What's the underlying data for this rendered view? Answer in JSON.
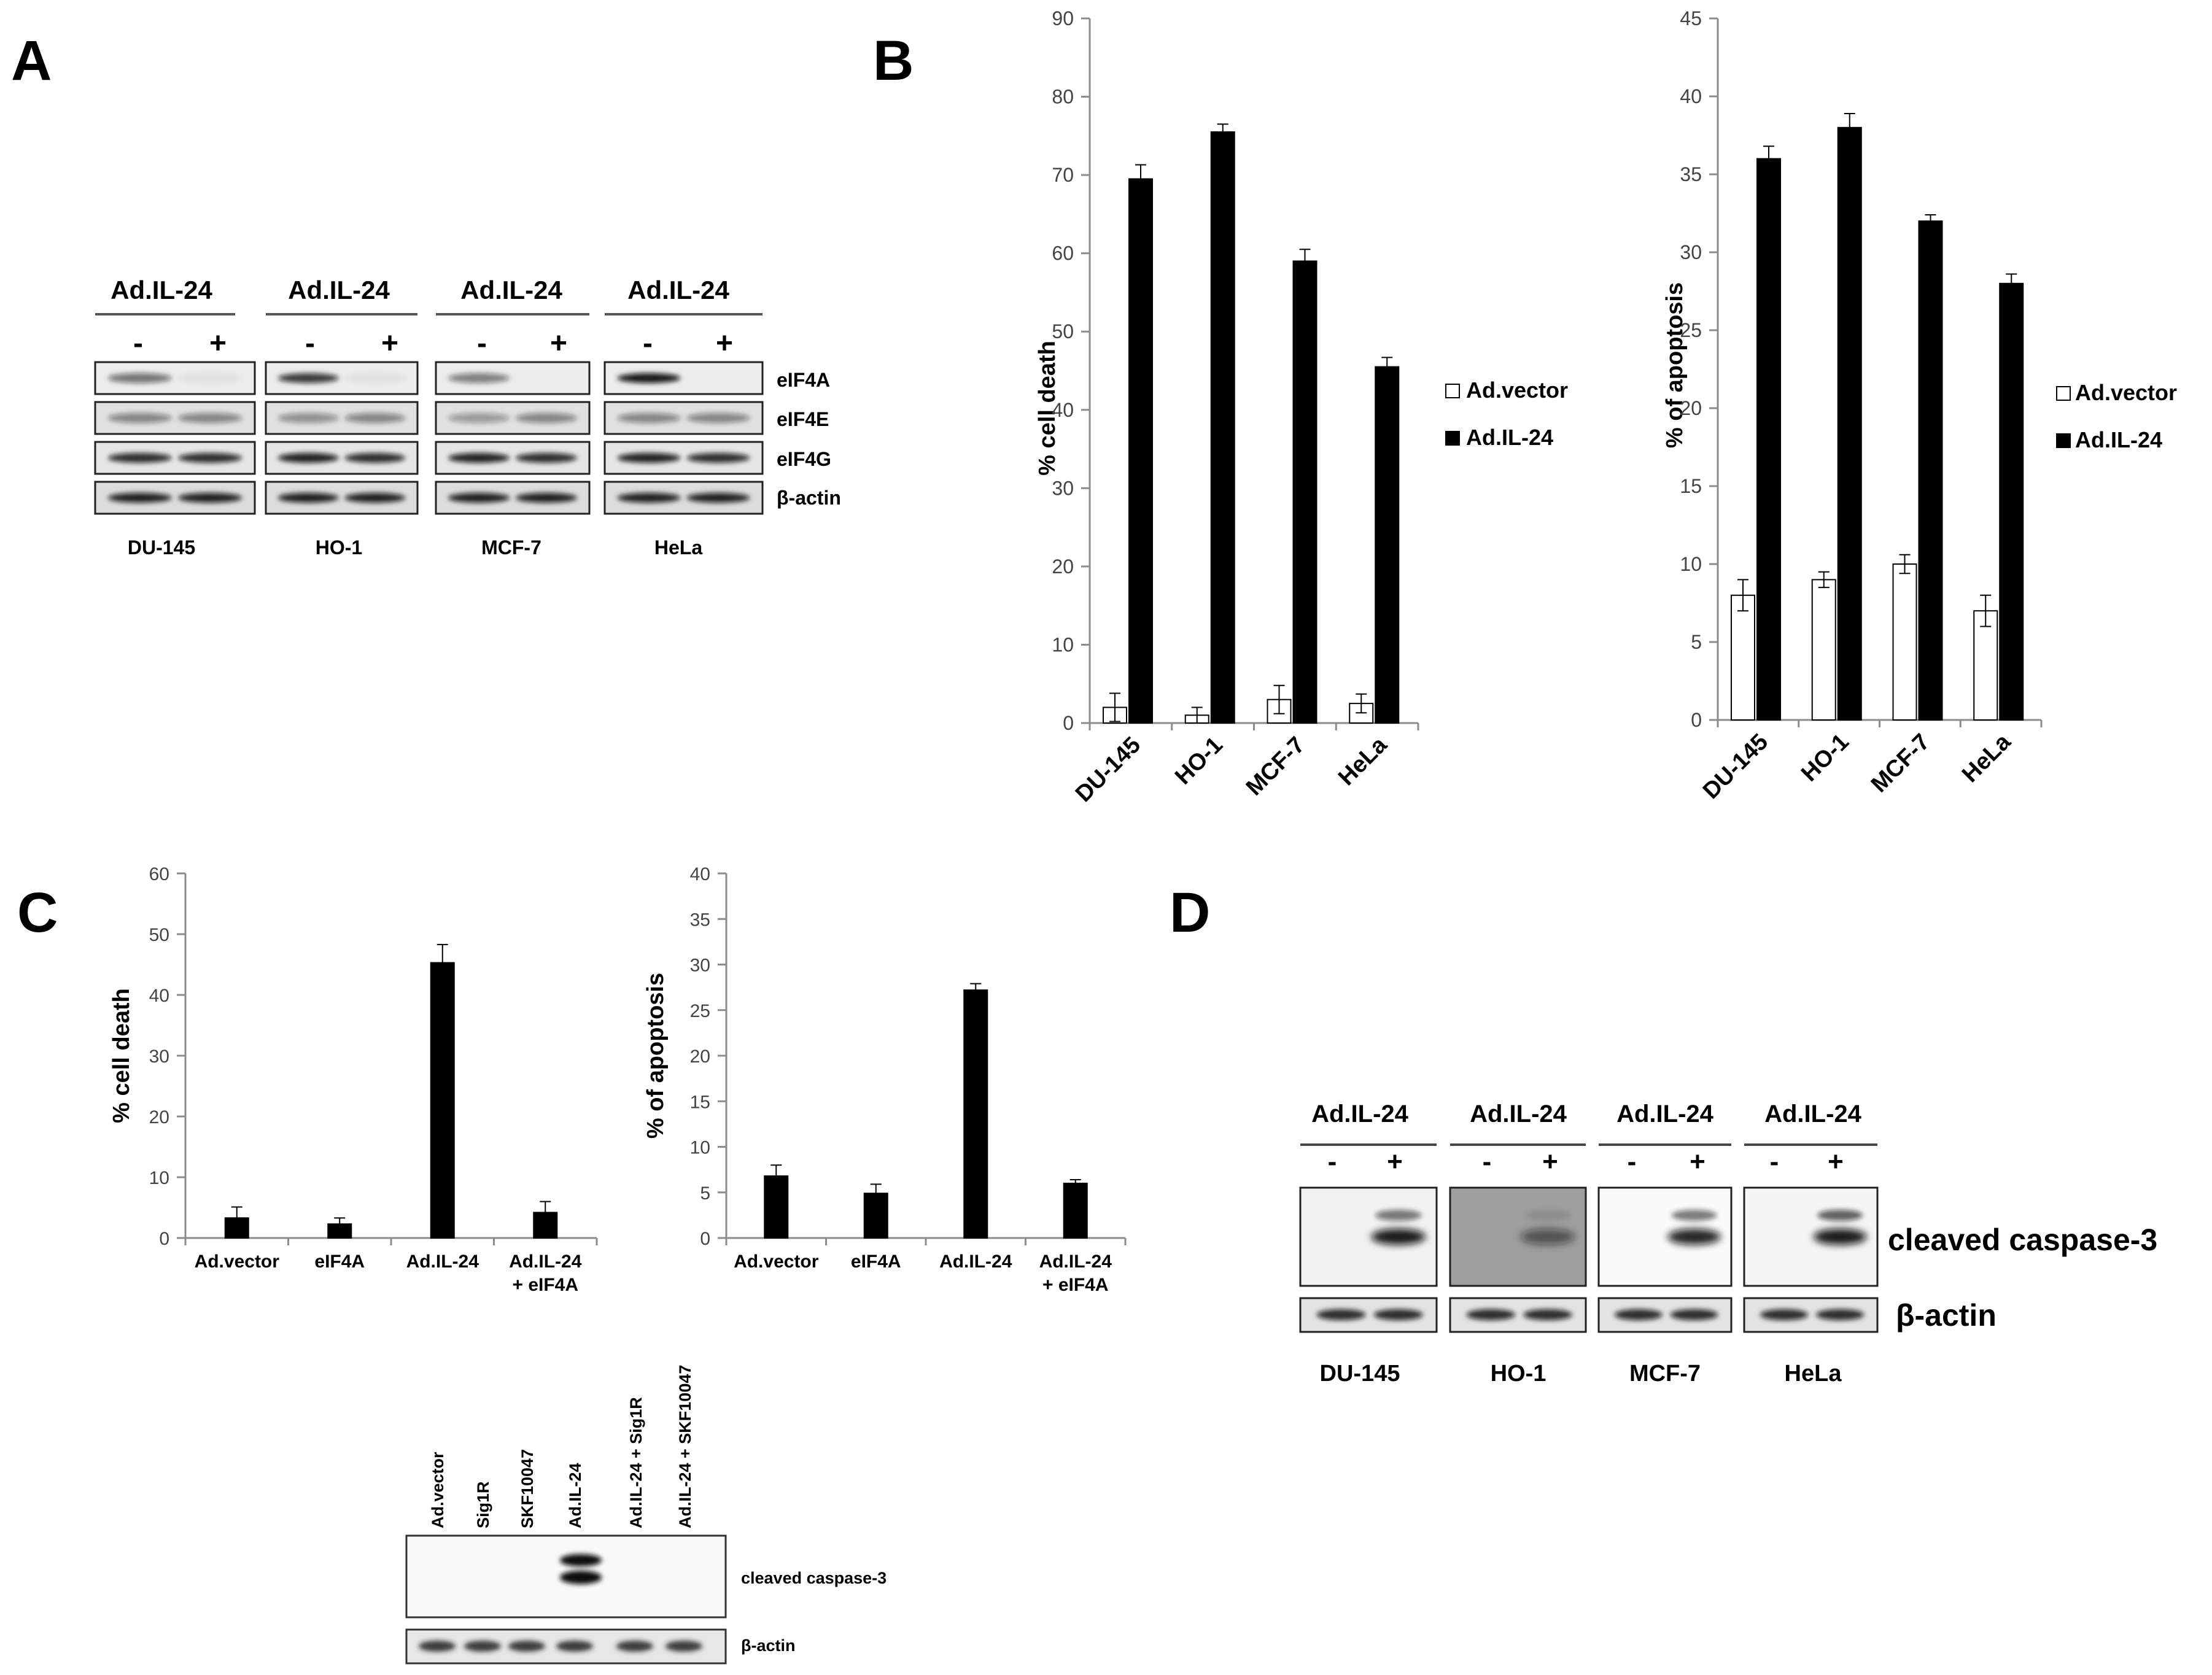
{
  "panels": {
    "a": "A",
    "b": "B",
    "c": "C",
    "d": "D"
  },
  "panel_a": {
    "header": "Ad.IL-24",
    "signs": [
      "-",
      "+"
    ],
    "rows": [
      "eIF4A",
      "eIF4E",
      "eIF4G",
      "β-actin"
    ],
    "cells": [
      "DU-145",
      "HO-1",
      "MCF-7",
      "HeLa"
    ]
  },
  "legend": {
    "vector": "Ad.vector",
    "il24": "Ad.IL-24"
  },
  "colors": {
    "vector": "#ffffff",
    "il24": "#000000",
    "axis": "#8c8c8c"
  },
  "panel_c_blot": {
    "lanes": [
      "Ad.vector",
      "Sig1R",
      "SKF10047",
      "Ad.IL-24",
      "Ad.IL-24 + Sig1R",
      "Ad.IL-24 + SKF10047"
    ],
    "rows": [
      "cleaved caspase-3",
      "β-actin"
    ]
  },
  "panel_d": {
    "header": "Ad.IL-24",
    "signs": [
      "-",
      "+"
    ],
    "rows": [
      "cleaved caspase-3",
      "β-actin"
    ],
    "cells": [
      "DU-145",
      "HO-1",
      "MCF-7",
      "HeLa"
    ]
  },
  "chart_data": [
    {
      "id": "b1",
      "type": "bar",
      "title": "",
      "ylabel": "% cell death",
      "xlabel": "",
      "ylim": [
        0,
        90
      ],
      "yticks": [
        0,
        10,
        20,
        30,
        40,
        50,
        60,
        70,
        80,
        90
      ],
      "categories": [
        "DU-145",
        "HO-1",
        "MCF-7",
        "HeLa"
      ],
      "series": [
        {
          "name": "Ad.vector",
          "values": [
            2,
            1,
            3,
            2.5
          ],
          "errors": [
            1.8,
            1,
            1.8,
            1.2
          ]
        },
        {
          "name": "Ad.IL-24",
          "values": [
            69.5,
            75.5,
            59,
            45.5
          ],
          "errors": [
            1.8,
            1,
            1.5,
            1.2
          ]
        }
      ],
      "legend": "right"
    },
    {
      "id": "b2",
      "type": "bar",
      "title": "",
      "ylabel": "% of apoptosis",
      "xlabel": "",
      "ylim": [
        0,
        45
      ],
      "yticks": [
        0,
        5,
        10,
        15,
        20,
        25,
        30,
        35,
        40,
        45
      ],
      "categories": [
        "DU-145",
        "HO-1",
        "MCF-7",
        "HeLa"
      ],
      "series": [
        {
          "name": "Ad.vector",
          "values": [
            8,
            9,
            10,
            7
          ],
          "errors": [
            1,
            0.5,
            0.6,
            1
          ]
        },
        {
          "name": "Ad.IL-24",
          "values": [
            36,
            38,
            32,
            28
          ],
          "errors": [
            0.8,
            0.9,
            0.4,
            0.6
          ]
        }
      ],
      "legend": "right"
    },
    {
      "id": "c1",
      "type": "bar",
      "title": "",
      "ylabel": "% cell death",
      "xlabel": "",
      "ylim": [
        0,
        60
      ],
      "yticks": [
        0,
        10,
        20,
        30,
        40,
        50,
        60
      ],
      "categories": [
        "Ad.vector",
        "eIF4A",
        "Ad.IL-24",
        "Ad.IL-24\n+ eIF4A"
      ],
      "series": [
        {
          "name": "",
          "values": [
            3.3,
            2.3,
            45.3,
            4.2
          ],
          "errors": [
            1.8,
            1,
            3,
            1.8
          ]
        }
      ]
    },
    {
      "id": "c2",
      "type": "bar",
      "title": "",
      "ylabel": "% of apoptosis",
      "xlabel": "",
      "ylim": [
        0,
        40
      ],
      "yticks": [
        0,
        5,
        10,
        15,
        20,
        25,
        30,
        35,
        40
      ],
      "categories": [
        "Ad.vector",
        "eIF4A",
        "Ad.IL-24",
        "Ad.IL-24\n+ eIF4A"
      ],
      "series": [
        {
          "name": "",
          "values": [
            6.8,
            4.9,
            27.2,
            6
          ],
          "errors": [
            1.2,
            1,
            0.7,
            0.4
          ]
        }
      ]
    }
  ]
}
